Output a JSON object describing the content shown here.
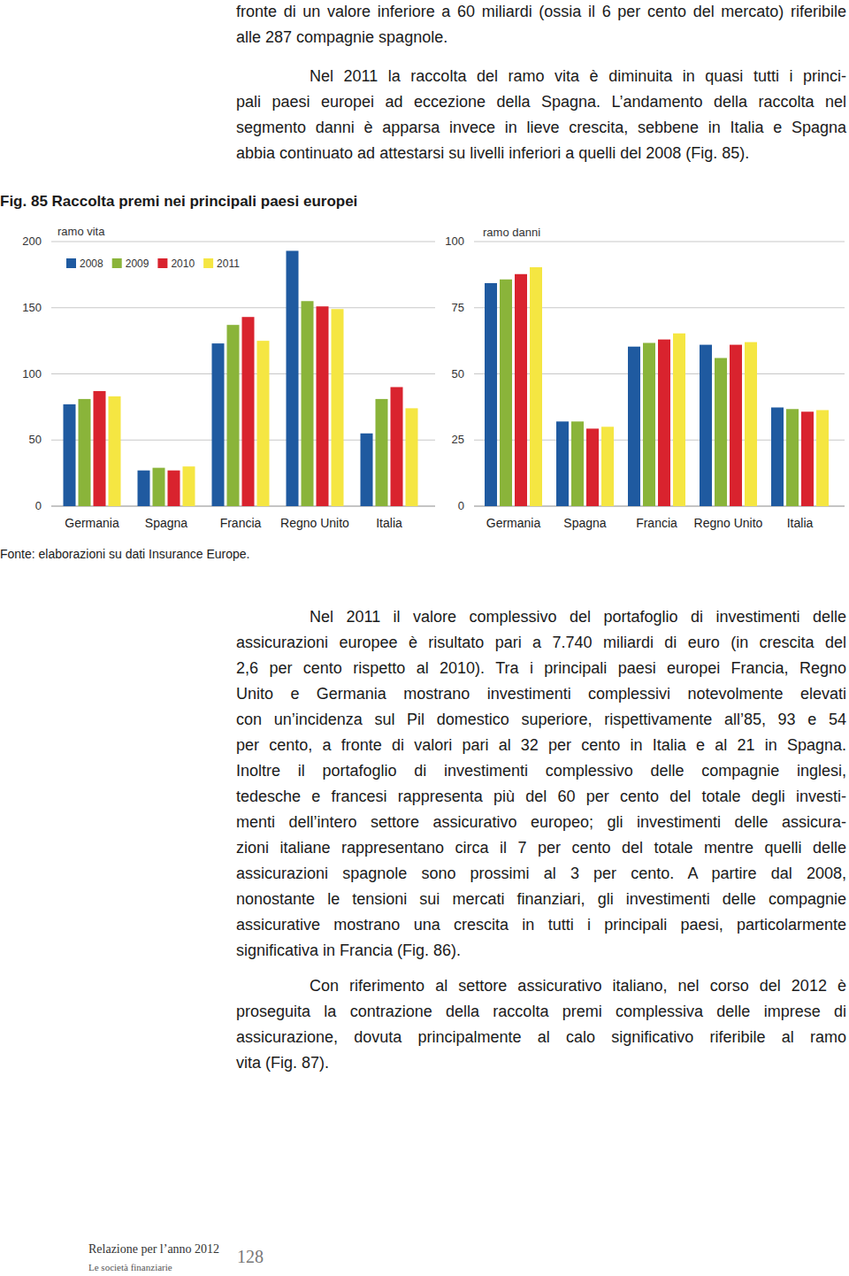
{
  "text_top": {
    "paragraphs": [
      [
        "fronte di un valore inferiore a 60 miliardi (ossia il 6 per cento del mercato) riferibile",
        "alle 287 compagnie spagnole."
      ],
      [
        "Nel 2011 la raccolta del ramo vita è diminuita in quasi tutti i princi-",
        "pali paesi europei ad eccezione della Spagna. L’andamento della raccolta nel",
        "segmento danni è apparsa invece in lieve crescita, sebbene in Italia e Spagna",
        "abbia continuato ad attestarsi su livelli inferiori a quelli del 2008 (Fig. 85)."
      ]
    ]
  },
  "figure": {
    "title": "Fig. 85 Raccolta premi nei principali paesi europei",
    "source": "Fonte: elaborazioni su dati Insurance Europe."
  },
  "chart_data": [
    {
      "type": "bar",
      "title": "ramo vita",
      "categories": [
        "Germania",
        "Spagna",
        "Francia",
        "Regno Unito",
        "Italia"
      ],
      "series": [
        {
          "name": "2008",
          "color": "#1f5aa0",
          "values": [
            77,
            27,
            123,
            193,
            55
          ]
        },
        {
          "name": "2009",
          "color": "#8ab43a",
          "values": [
            81,
            29,
            137,
            155,
            81
          ]
        },
        {
          "name": "2010",
          "color": "#d9232e",
          "values": [
            87,
            27,
            143,
            151,
            90
          ]
        },
        {
          "name": "2011",
          "color": "#f5e642",
          "values": [
            83,
            30,
            125,
            149,
            74
          ]
        }
      ],
      "ylim": [
        0,
        200
      ],
      "yticks": [
        0,
        50,
        100,
        150,
        200
      ],
      "grid": true,
      "legend": "top-left"
    },
    {
      "type": "bar",
      "title": "ramo danni",
      "categories": [
        "Germania",
        "Spagna",
        "Francia",
        "Regno Unito",
        "Italia"
      ],
      "series": [
        {
          "name": "2008",
          "color": "#1f5aa0",
          "values": [
            84.3,
            32,
            60.3,
            61,
            37.3
          ]
        },
        {
          "name": "2009",
          "color": "#8ab43a",
          "values": [
            85.7,
            32,
            61.7,
            56,
            36.7
          ]
        },
        {
          "name": "2010",
          "color": "#d9232e",
          "values": [
            87.7,
            29.3,
            63,
            61,
            35.7
          ]
        },
        {
          "name": "2011",
          "color": "#f5e642",
          "values": [
            90.3,
            30,
            65.3,
            62,
            36.3
          ]
        }
      ],
      "ylim": [
        0,
        100
      ],
      "yticks": [
        0,
        25,
        50,
        75,
        100
      ],
      "grid": true
    }
  ],
  "text_bottom": {
    "paragraphs": [
      [
        "Nel 2011 il valore complessivo del portafoglio di investimenti delle",
        "assicurazioni europee è risultato pari a 7.740 miliardi di euro (in crescita del",
        "2,6 per cento rispetto al 2010). Tra i principali paesi europei Francia, Regno",
        "Unito e Germania mostrano investimenti complessivi notevolmente elevati",
        "con un’incidenza sul Pil domestico superiore, rispettivamente all’85, 93 e 54",
        "per cento, a fronte di valori pari al 32 per cento in Italia e al 21 in Spagna.",
        "Inoltre il portafoglio di investimenti complessivo delle compagnie inglesi,",
        "tedesche e francesi rappresenta più del 60 per cento del totale degli investi-",
        "menti dell’intero settore assicurativo europeo; gli investimenti delle assicura-",
        "zioni italiane rappresentano circa il 7 per cento del totale mentre quelli delle",
        "assicurazioni spagnole sono prossimi al 3 per cento. A partire dal 2008,",
        "nonostante le tensioni sui mercati finanziari, gli investimenti delle compagnie",
        "assicurative mostrano una crescita in tutti i principali paesi, particolarmente",
        "significativa in Francia (Fig. 86)."
      ],
      [
        "Con riferimento al settore assicurativo italiano, nel corso del 2012 è",
        "proseguita la contrazione della raccolta premi complessiva delle imprese di",
        "assicurazione, dovuta principalmente al calo significativo riferibile al ramo",
        "vita (Fig. 87)."
      ]
    ]
  },
  "footer": {
    "report": "Relazione per l’anno 2012",
    "section": "Le società finanziarie",
    "page_number": 128
  }
}
